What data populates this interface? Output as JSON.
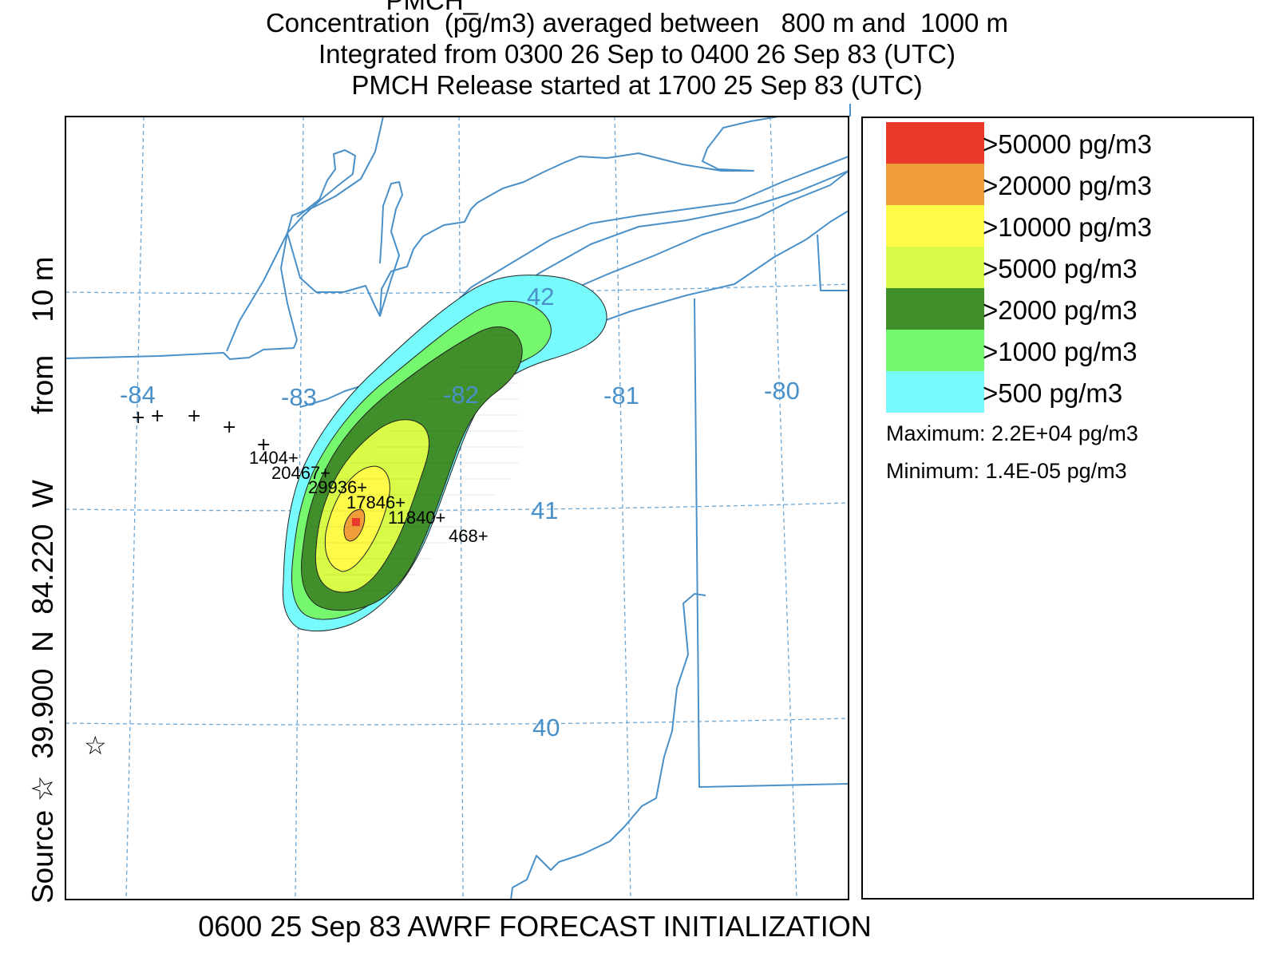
{
  "title": {
    "line1": "PMCH_                                                        ",
    "line2": "Concentration  (pg/m3) averaged between   800 m and  1000 m",
    "line3": "Integrated from 0300 26 Sep to 0400 26 Sep 83 (UTC)",
    "line4": "PMCH Release started at 1700 25 Sep 83 (UTC)"
  },
  "side_label": "Source ☆  39.900  N  84.220  W        from    10 m",
  "footer": "0600 25 Sep 83 AWRF FORECAST INITIALIZATION",
  "source_marker": "☆",
  "map": {
    "lon_labels": [
      "-84",
      "-83",
      "-82",
      "-81",
      "-80"
    ],
    "lat_labels": [
      "42",
      "41",
      "40"
    ],
    "station_values": [
      "1404+",
      "20467+",
      "29936+",
      "17846+",
      "11840+",
      "468+"
    ],
    "station_marker": "+",
    "boundary_color": "#4a90c8",
    "grid_color": "#6aa6d6"
  },
  "legend": {
    "items": [
      {
        "label": ">50000 pg/m3",
        "color": "#e8392a"
      },
      {
        "label": ">20000 pg/m3",
        "color": "#f19e3a"
      },
      {
        "label": ">10000 pg/m3",
        "color": "#fefb48"
      },
      {
        "label": ">5000 pg/m3",
        "color": "#d8fb48"
      },
      {
        "label": ">2000 pg/m3",
        "color": "#418f2a"
      },
      {
        "label": ">1000 pg/m3",
        "color": "#76f86e"
      },
      {
        "label": ">500 pg/m3",
        "color": "#76fafc"
      }
    ],
    "maximum": "Maximum: 2.2E+04 pg/m3",
    "minimum": "Minimum: 1.4E-05 pg/m3"
  }
}
